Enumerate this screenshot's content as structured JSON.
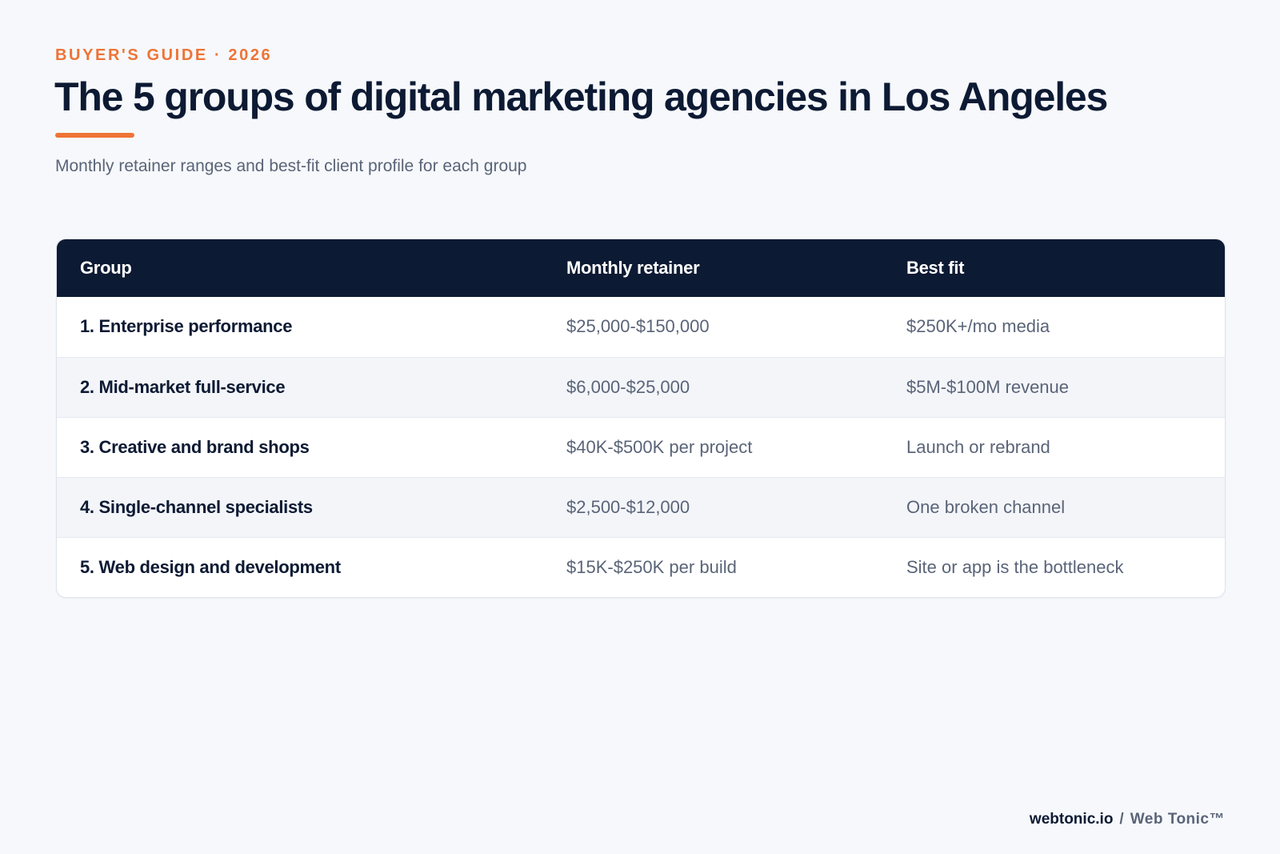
{
  "header": {
    "eyebrow": "BUYER'S GUIDE · 2026",
    "title": "The 5 groups of digital marketing agencies in Los Angeles",
    "subtitle": "Monthly retainer ranges and best-fit client profile for each group"
  },
  "table": {
    "columns": [
      "Group",
      "Monthly retainer",
      "Best fit"
    ],
    "rows": [
      {
        "group": "1. Enterprise performance",
        "retainer": "$25,000-$150,000",
        "best_fit": "$250K+/mo media"
      },
      {
        "group": "2. Mid-market full-service",
        "retainer": "$6,000-$25,000",
        "best_fit": "$5M-$100M revenue"
      },
      {
        "group": "3. Creative and brand shops",
        "retainer": "$40K-$500K per project",
        "best_fit": "Launch or rebrand"
      },
      {
        "group": "4. Single-channel specialists",
        "retainer": "$2,500-$12,000",
        "best_fit": "One broken channel"
      },
      {
        "group": "5. Web design and development",
        "retainer": "$15K-$250K per build",
        "best_fit": "Site or app is the bottleneck"
      }
    ]
  },
  "footer": {
    "domain": "webtonic.io",
    "separator": "/",
    "brand": "Web Tonic™"
  },
  "colors": {
    "accent": "#ef7335",
    "navy": "#0d1a33",
    "muted_text": "#5a6478",
    "background": "#f6f8fb"
  }
}
